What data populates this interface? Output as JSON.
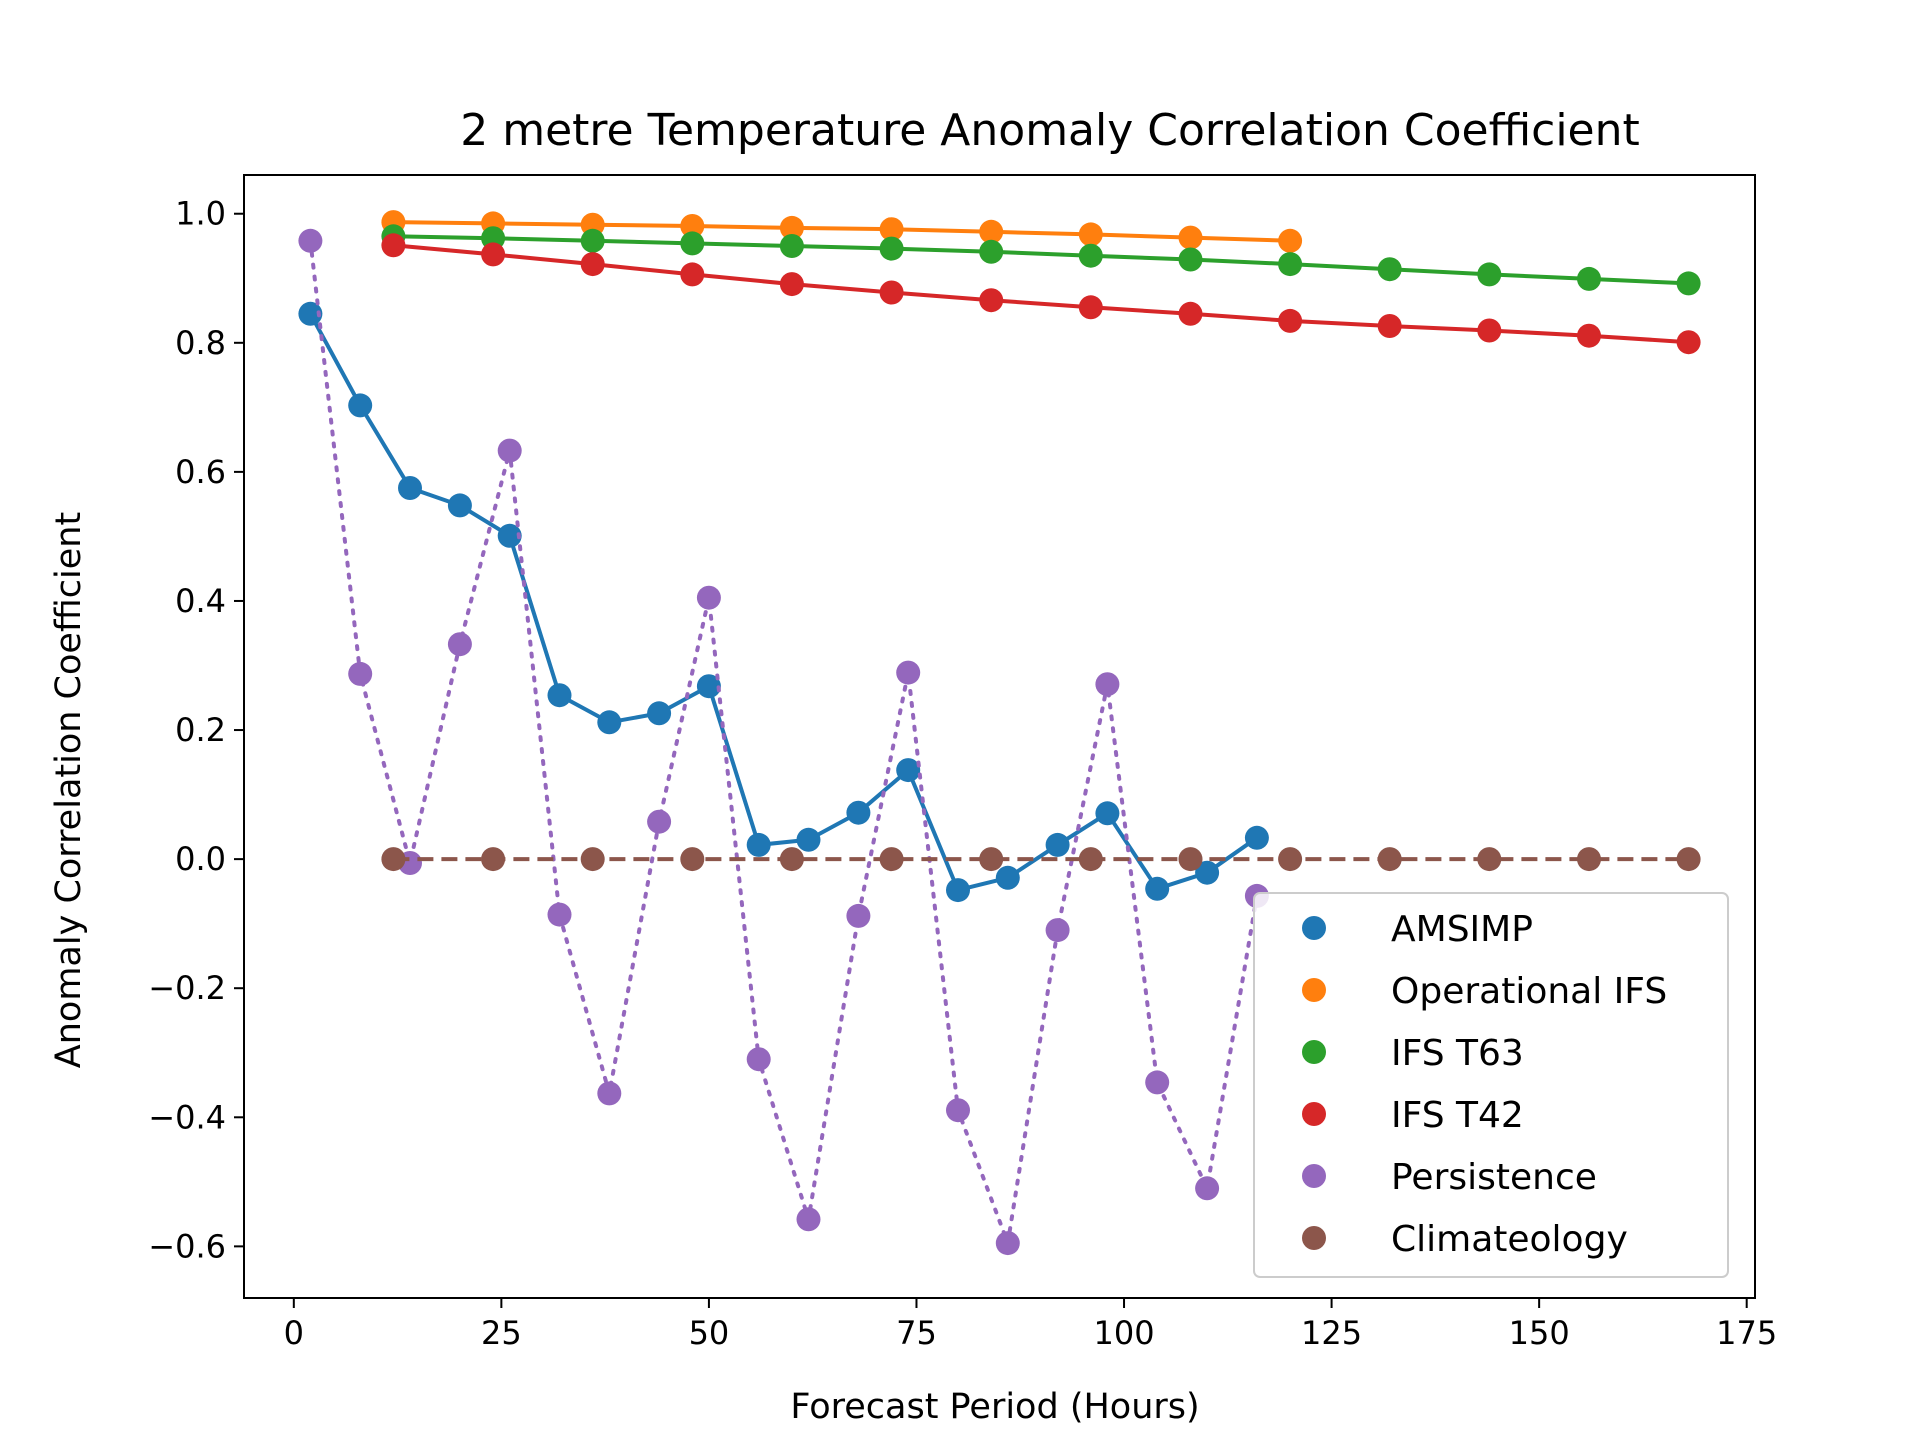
{
  "chart_data": {
    "type": "line",
    "title": "2 metre Temperature Anomaly Correlation Coefficient",
    "xlabel": "Forecast Period (Hours)",
    "ylabel": "Anomaly Correlation Coefficient",
    "xlim": [
      -6,
      176
    ],
    "ylim": [
      -0.68,
      1.06
    ],
    "xticks": [
      0,
      25,
      50,
      75,
      100,
      125,
      150,
      175
    ],
    "xtick_labels": [
      "0",
      "25",
      "50",
      "75",
      "100",
      "125",
      "150",
      "175"
    ],
    "yticks": [
      -0.6,
      -0.4,
      -0.2,
      0.0,
      0.2,
      0.4,
      0.6,
      0.8,
      1.0
    ],
    "ytick_labels": [
      "−0.6",
      "−0.4",
      "−0.2",
      "0.0",
      "0.2",
      "0.4",
      "0.6",
      "0.8",
      "1.0"
    ],
    "grid": false,
    "legend_position": "lower-right",
    "series": [
      {
        "name": "AMSIMP",
        "color": "#1f77b4",
        "linestyle": "solid",
        "x": [
          2,
          8,
          14,
          20,
          26,
          32,
          38,
          44,
          50,
          56,
          62,
          68,
          74,
          80,
          86,
          92,
          98,
          104,
          110,
          116
        ],
        "y": [
          0.845,
          0.703,
          0.575,
          0.548,
          0.501,
          0.254,
          0.212,
          0.226,
          0.268,
          0.022,
          0.03,
          0.072,
          0.138,
          -0.048,
          -0.029,
          0.022,
          0.071,
          -0.046,
          -0.021,
          0.033
        ]
      },
      {
        "name": "Operational IFS",
        "color": "#ff7f0e",
        "linestyle": "solid",
        "x": [
          12,
          24,
          36,
          48,
          60,
          72,
          84,
          96,
          108,
          120
        ],
        "y": [
          0.987,
          0.985,
          0.983,
          0.981,
          0.978,
          0.976,
          0.972,
          0.968,
          0.963,
          0.958
        ]
      },
      {
        "name": "IFS T63",
        "color": "#2ca02c",
        "linestyle": "solid",
        "x": [
          12,
          24,
          36,
          48,
          60,
          72,
          84,
          96,
          108,
          120,
          132,
          144,
          156,
          168
        ],
        "y": [
          0.965,
          0.962,
          0.958,
          0.954,
          0.95,
          0.946,
          0.941,
          0.935,
          0.929,
          0.922,
          0.914,
          0.906,
          0.899,
          0.892
        ]
      },
      {
        "name": "IFS T42",
        "color": "#d62728",
        "linestyle": "solid",
        "x": [
          12,
          24,
          36,
          48,
          60,
          72,
          84,
          96,
          108,
          120,
          132,
          144,
          156,
          168
        ],
        "y": [
          0.951,
          0.937,
          0.922,
          0.906,
          0.891,
          0.878,
          0.866,
          0.855,
          0.845,
          0.834,
          0.826,
          0.819,
          0.811,
          0.801
        ]
      },
      {
        "name": "Persistence",
        "color": "#9467bd",
        "linestyle": "dotted",
        "x": [
          2,
          8,
          14,
          20,
          26,
          32,
          38,
          44,
          50,
          56,
          62,
          68,
          74,
          80,
          86,
          92,
          98,
          104,
          110,
          116
        ],
        "y": [
          0.958,
          0.287,
          -0.006,
          0.333,
          0.633,
          -0.086,
          -0.363,
          0.058,
          0.405,
          -0.31,
          -0.558,
          -0.088,
          0.289,
          -0.389,
          -0.595,
          -0.11,
          0.271,
          -0.346,
          -0.51,
          -0.057
        ]
      },
      {
        "name": "Climateology",
        "color": "#8c564b",
        "linestyle": "dashed",
        "x": [
          12,
          24,
          36,
          48,
          60,
          72,
          84,
          96,
          108,
          120,
          132,
          144,
          156,
          168
        ],
        "y": [
          0.0,
          0.0,
          0.0,
          0.0,
          0.0,
          0.0,
          0.0,
          0.0,
          0.0,
          0.0,
          0.0,
          0.0,
          0.0,
          0.0
        ]
      }
    ]
  }
}
